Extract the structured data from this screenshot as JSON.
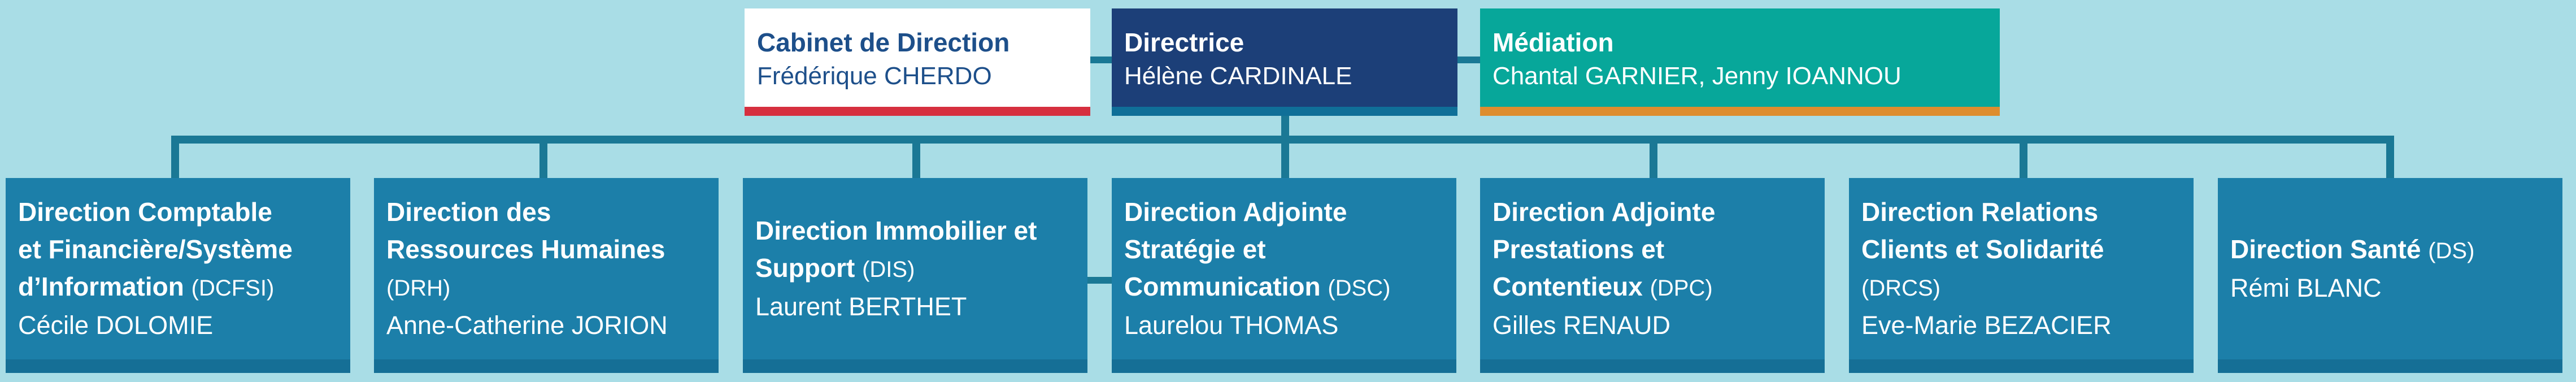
{
  "top": {
    "cabinet": {
      "title": "Cabinet de Direction",
      "name": "Frédérique CHERDO"
    },
    "directrice": {
      "title": "Directrice",
      "name": "Hélène CARDINALE"
    },
    "mediation": {
      "title": "Médiation",
      "name": "Chantal GARNIER,  Jenny IOANNOU"
    }
  },
  "directions": [
    {
      "title": "Direction Comptable\net Financière/Système\nd’Information",
      "code": "(DCFSI)",
      "name": "Cécile DOLOMIE"
    },
    {
      "title": "Direction des\nRessources Humaines",
      "code": "(DRH)",
      "name": "Anne-Catherine JORION"
    },
    {
      "title": "Direction Immobilier et\nSupport",
      "code": "(DIS)",
      "name": "Laurent BERTHET"
    },
    {
      "title": "Direction Adjointe\nStratégie et\nCommunication",
      "code": "(DSC)",
      "name": "Laurelou THOMAS"
    },
    {
      "title": "Direction Adjointe\nPrestations et\nContentieux",
      "code": "(DPC)",
      "name": "Gilles RENAUD"
    },
    {
      "title": "Direction Relations\nClients et Solidarité",
      "code": "(DRCS)",
      "name": "Eve-Marie BEZACIER"
    },
    {
      "title": "Direction Santé",
      "code": "(DS)",
      "name": "Rémi BLANC"
    }
  ],
  "colors": {
    "background": "#a9dde6",
    "connector": "#1a7895",
    "directrice": "#1c3f78",
    "mediation": "#07a79a",
    "direction_box": "#1c7fa9",
    "cabinet_accent": "#d62f3f",
    "mediation_accent": "#de8d2e"
  }
}
